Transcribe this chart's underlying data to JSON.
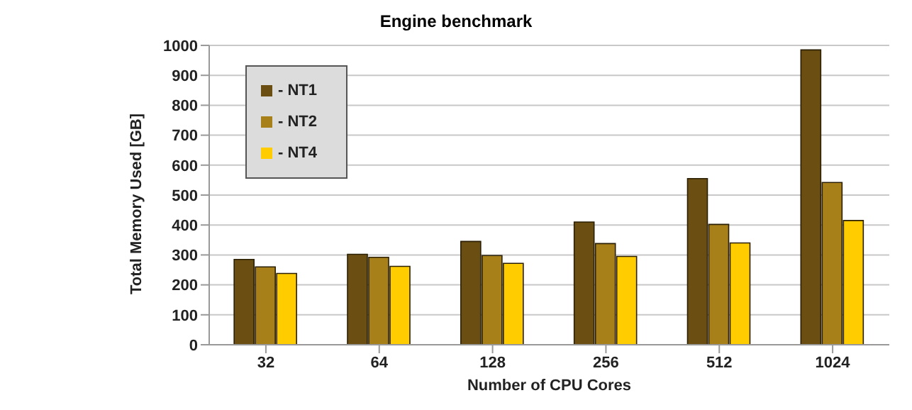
{
  "chart_data": {
    "type": "bar",
    "title": "Engine benchmark",
    "xlabel": "Number of CPU Cores",
    "ylabel": "Total Memory Used  [GB]",
    "categories": [
      "32",
      "64",
      "128",
      "256",
      "512",
      "1024"
    ],
    "series": [
      {
        "name": "- NT1",
        "color": "#6b4f12",
        "values": [
          285,
          302,
          345,
          410,
          555,
          985
        ]
      },
      {
        "name": "- NT2",
        "color": "#a8801a",
        "values": [
          260,
          292,
          298,
          338,
          402,
          542
        ]
      },
      {
        "name": "- NT4",
        "color": "#ffcc00",
        "values": [
          238,
          262,
          272,
          295,
          340,
          415
        ]
      }
    ],
    "ylim": [
      0,
      1000
    ],
    "yticks": [
      0,
      100,
      200,
      300,
      400,
      500,
      600,
      700,
      800,
      900,
      1000
    ],
    "grid": "y",
    "legend": "top left"
  }
}
